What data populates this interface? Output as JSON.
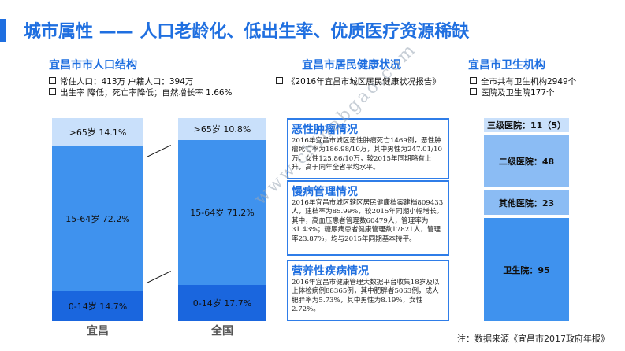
{
  "title": "城市属性 —— 人口老龄化、低出生率、优质医疗资源稀缺",
  "population": {
    "heading": "宜昌市市人口结构",
    "bullets": [
      "常住人口：413万  户籍人口：394万",
      "出生率 降低；死亡率降低；自然增长率 1.66%"
    ]
  },
  "health": {
    "heading": "宜昌市居民健康状况",
    "bullets": [
      "《2016年宜昌市城区居民健康状况报告》"
    ],
    "boxes": [
      {
        "title": "恶性肿瘤情况",
        "body": "2016年宜昌市城区恶性肿瘤死亡1469例，恶性肿瘤死亡率为186.98/10万，其中男性为247.01/10万，女性125.86/10万，较2015年同期略有上升，高于同年全省平均水平。"
      },
      {
        "title": "慢病管理情况",
        "body": "2016年宜昌市城区辖区居民健康档案建档809433人，建档率为85.99%，较2015年同期小幅增长。其中，高血压患者管理数60479人，管理率为31.43%；糖尿病患者健康管理数17821人，管理率23.87%，均与2015年同期基本持平。"
      },
      {
        "title": "营养性疾病情况",
        "body": "2016年宜昌市健康管理大数据平台收集18岁及以上体检病例88365例，其中肥胖者5063例，成人肥胖率为5.73%，其中男性为8.19%，女性2.72%。"
      }
    ]
  },
  "institutions": {
    "heading": "宜昌市卫生机构",
    "bullets": [
      "全市共有卫生机构2949个",
      "医院及卫生院177个"
    ]
  },
  "chart_data": [
    {
      "type": "bar",
      "stacked": true,
      "categories": [
        "宜昌",
        "全国"
      ],
      "series": [
        {
          "name": "0-14岁",
          "values": [
            14.7,
            17.7
          ],
          "labels": [
            "0-14岁  14.7%",
            "0-14岁  17.7%"
          ]
        },
        {
          "name": "15-64岁",
          "values": [
            72.2,
            71.2
          ],
          "labels": [
            "15-64岁 72.2%",
            "15-64岁  71.2%"
          ]
        },
        {
          "name": ">65岁",
          "values": [
            14.1,
            10.8
          ],
          "labels": [
            ">65岁   14.1%",
            ">65岁   10.8%"
          ]
        }
      ],
      "colors": {
        "0-14岁": "#1a66de",
        "15-64岁": "#3f92ee",
        ">65岁": "#c9e0fb"
      }
    },
    {
      "type": "bar",
      "stacked": true,
      "orientation": "vertical-stack",
      "categories": [
        "三级医院",
        "二级医院",
        "其他医院",
        "卫生院"
      ],
      "values": [
        11,
        48,
        23,
        95
      ],
      "labels": [
        "三级医院：11（5）",
        "二级医院：48",
        "其他医院：23",
        "卫生院：95"
      ],
      "colors": [
        "#c9e0fb",
        "#8bbcf4",
        "#8bbcf4",
        "#3f92ee"
      ]
    }
  ],
  "footnote": "注：数据来源《宜昌市2017政府年报》",
  "watermark": "www.chinabgao.com"
}
